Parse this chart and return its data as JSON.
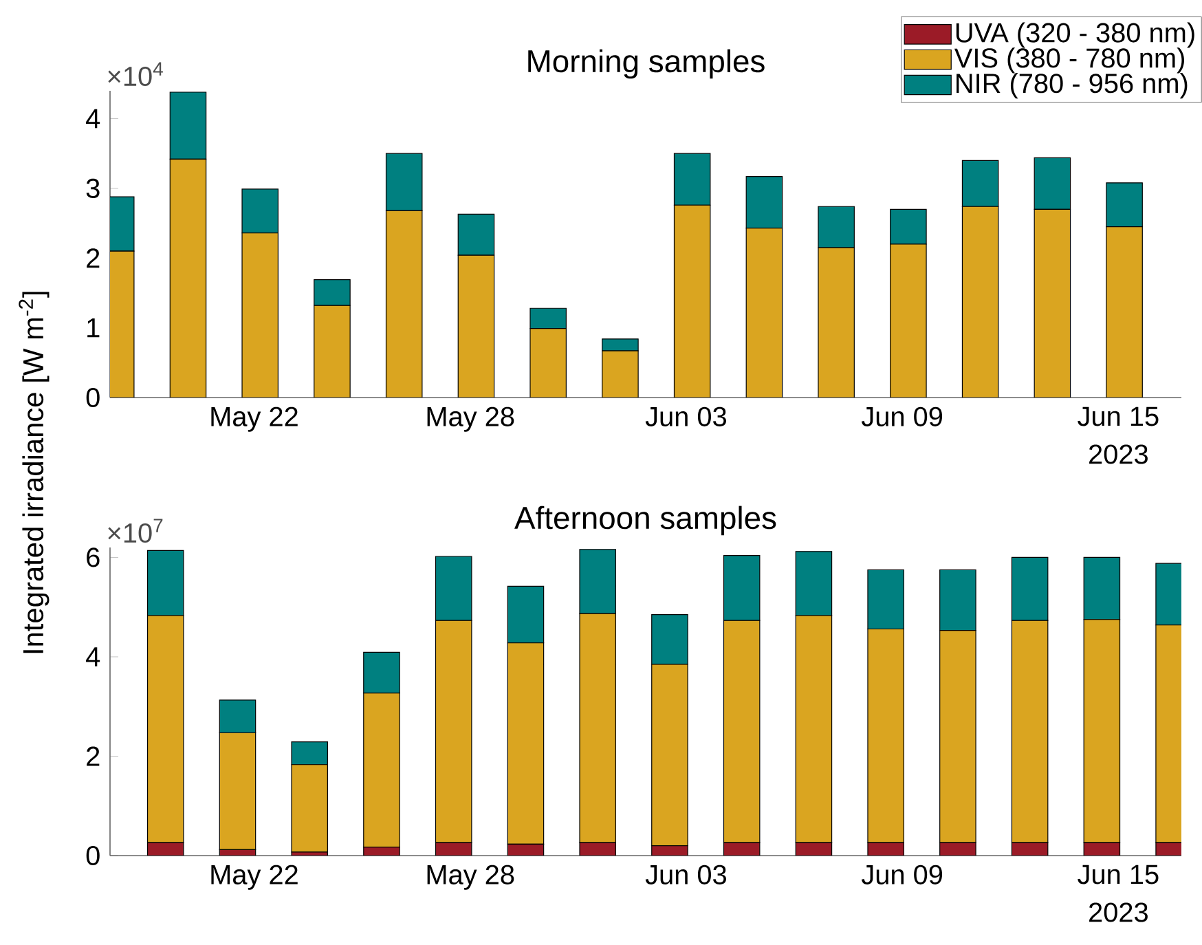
{
  "chart_data": [
    {
      "type": "bar",
      "stacked": true,
      "title": "Morning samples",
      "ylabel": "Integrated irradiance [W m$^{-2}$]",
      "x": [
        "2023-05-18T04:00",
        "2023-05-20T04:00",
        "2023-05-22T04:00",
        "2023-05-24T04:00",
        "2023-05-26T04:00",
        "2023-05-28T04:00",
        "2023-05-30T04:00",
        "2023-06-01T04:00",
        "2023-06-03T04:00",
        "2023-06-05T04:00",
        "2023-06-07T04:00",
        "2023-06-09T04:00",
        "2023-06-11T04:00",
        "2023-06-13T04:00",
        "2023-06-15T04:00"
      ],
      "series": [
        {
          "name": "UVA (320 - 380 nm)",
          "color": "#9b1b27",
          "values": [
            null,
            null,
            null,
            null,
            null,
            null,
            null,
            null,
            null,
            null,
            null,
            null,
            null,
            null,
            null
          ]
        },
        {
          "name": "VIS (380 - 780 nm)",
          "color": "#daa520",
          "values": [
            2.1,
            3.42,
            2.36,
            1.32,
            2.68,
            2.04,
            0.99,
            0.67,
            2.76,
            2.43,
            2.15,
            2.2,
            2.74,
            2.7,
            2.45
          ]
        },
        {
          "name": "NIR (780 - 956 nm)",
          "color": "#008080",
          "values": [
            0.78,
            0.96,
            0.63,
            0.37,
            0.82,
            0.59,
            0.29,
            0.17,
            0.74,
            0.74,
            0.59,
            0.5,
            0.66,
            0.74,
            0.63
          ]
        }
      ],
      "xlim": [
        "2023-05-18",
        "2023-06-16T18:00"
      ],
      "xticks": [
        {
          "value": "2023-05-22",
          "label": "May 22"
        },
        {
          "value": "2023-05-28",
          "label": "May 28"
        },
        {
          "value": "2023-06-03",
          "label": "Jun 03"
        },
        {
          "value": "2023-06-09",
          "label": "Jun 09"
        },
        {
          "value": "2023-06-15",
          "label": "Jun 15"
        }
      ],
      "ylim": [
        0,
        4.4
      ],
      "yticks": [
        0,
        1,
        2,
        3,
        4
      ],
      "legend": "top right",
      "annotations": [
        "×10$^{4}$",
        "2023"
      ]
    },
    {
      "type": "bar",
      "stacked": true,
      "title": "Afternoon samples",
      "x": [
        "2023-05-19T13:00",
        "2023-05-21T13:00",
        "2023-05-23T13:00",
        "2023-05-25T13:00",
        "2023-05-27T13:00",
        "2023-05-29T13:00",
        "2023-05-31T13:00",
        "2023-06-02T13:00",
        "2023-06-04T13:00",
        "2023-06-06T13:00",
        "2023-06-08T13:00",
        "2023-06-10T13:00",
        "2023-06-12T13:00",
        "2023-06-14T13:00",
        "2023-06-16T13:00"
      ],
      "series": [
        {
          "color": "#9b1b27",
          "values": [
            0.26,
            0.12,
            0.07,
            0.17,
            0.26,
            0.23,
            0.26,
            0.2,
            0.26,
            0.26,
            0.26,
            0.26,
            0.26,
            0.26,
            0.26
          ]
        },
        {
          "color": "#daa520",
          "values": [
            4.57,
            2.35,
            1.76,
            3.1,
            4.47,
            4.05,
            4.61,
            3.65,
            4.47,
            4.57,
            4.3,
            4.27,
            4.47,
            4.49,
            4.38
          ]
        },
        {
          "color": "#008080",
          "values": [
            1.31,
            0.66,
            0.46,
            0.82,
            1.29,
            1.14,
            1.29,
            1.0,
            1.31,
            1.29,
            1.19,
            1.22,
            1.27,
            1.25,
            1.24
          ]
        }
      ],
      "xlim": [
        "2023-05-18",
        "2023-06-16T18:00"
      ],
      "xticks": [
        {
          "value": "2023-05-22",
          "label": "May 22"
        },
        {
          "value": "2023-05-28",
          "label": "May 28"
        },
        {
          "value": "2023-06-03",
          "label": "Jun 03"
        },
        {
          "value": "2023-06-09",
          "label": "Jun 09"
        },
        {
          "value": "2023-06-15",
          "label": "Jun 15"
        }
      ],
      "ylim": [
        0,
        6.2
      ],
      "yticks": [
        0,
        2,
        4,
        6
      ],
      "annotations": [
        "×10$^{7}$",
        "2023"
      ]
    }
  ]
}
